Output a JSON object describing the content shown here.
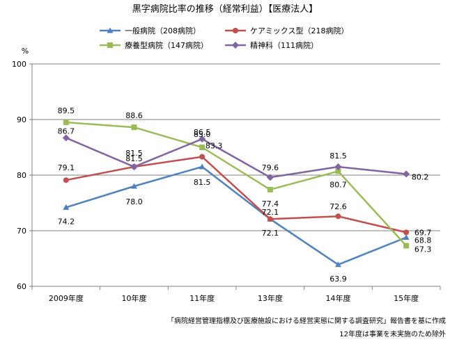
{
  "chart_data": {
    "type": "line",
    "title": "黒字病院比率の推移（経常利益）【医療法人】",
    "ylabel": "%",
    "xlabel": "",
    "ylim": [
      60,
      100
    ],
    "yticks": [
      60,
      70,
      80,
      90,
      100
    ],
    "grid": true,
    "legend_position": "top",
    "categories": [
      "2009年度",
      "10年度",
      "11年度",
      "13年度",
      "14年度",
      "15年度"
    ],
    "series": [
      {
        "name": "一般病院（208病院）",
        "color": "#4f81bd",
        "marker": "triangle",
        "values": [
          74.2,
          78.0,
          81.5,
          72.1,
          63.9,
          68.8
        ]
      },
      {
        "name": "ケアミックス型（218病院）",
        "color": "#c0504d",
        "marker": "circle",
        "values": [
          79.1,
          81.5,
          83.3,
          72.1,
          72.6,
          69.7
        ]
      },
      {
        "name": "療養型病院（147病院）",
        "color": "#9bbb59",
        "marker": "square",
        "values": [
          89.5,
          88.6,
          85.0,
          77.4,
          80.7,
          67.3
        ]
      },
      {
        "name": "精神科（111病院）",
        "color": "#8064a2",
        "marker": "diamond",
        "values": [
          86.7,
          81.5,
          86.5,
          79.6,
          81.5,
          80.2
        ]
      }
    ],
    "annotations": [
      "「病院経営管理指標及び医療施設における経営実態に関する調査研究」報告書を基に作成",
      "12年度は事業を未実施のため除外"
    ]
  }
}
